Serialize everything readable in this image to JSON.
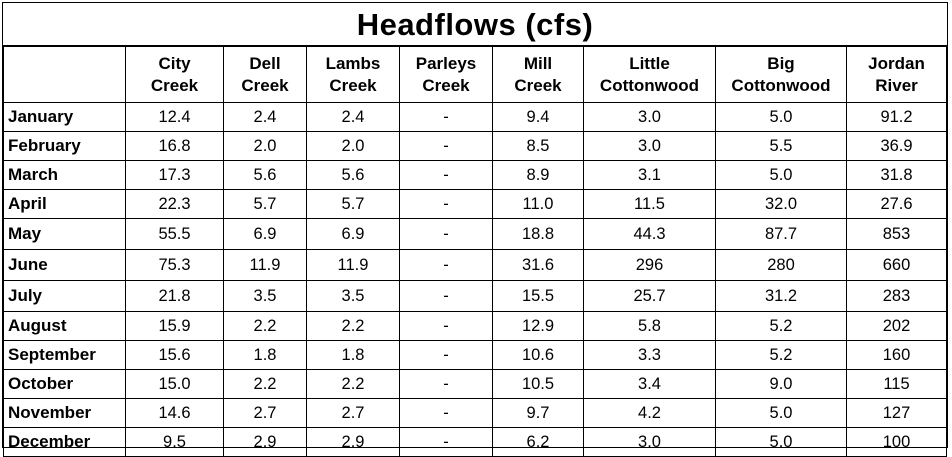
{
  "title": "Headflows (cfs)",
  "columns": [
    {
      "line1": "",
      "line2": ""
    },
    {
      "line1": "City",
      "line2": "Creek"
    },
    {
      "line1": "Dell",
      "line2": "Creek"
    },
    {
      "line1": "Lambs",
      "line2": "Creek"
    },
    {
      "line1": "Parleys",
      "line2": "Creek"
    },
    {
      "line1": "Mill",
      "line2": "Creek"
    },
    {
      "line1": "Little",
      "line2": "Cottonwood"
    },
    {
      "line1": "Big",
      "line2": "Cottonwood"
    },
    {
      "line1": "Jordan",
      "line2": "River"
    }
  ],
  "rows": [
    {
      "month": "January",
      "values": [
        "12.4",
        "2.4",
        "2.4",
        "-",
        "9.4",
        "3.0",
        "5.0",
        "91.2"
      ]
    },
    {
      "month": "February",
      "values": [
        "16.8",
        "2.0",
        "2.0",
        "-",
        "8.5",
        "3.0",
        "5.5",
        "36.9"
      ]
    },
    {
      "month": "March",
      "values": [
        "17.3",
        "5.6",
        "5.6",
        "-",
        "8.9",
        "3.1",
        "5.0",
        "31.8"
      ]
    },
    {
      "month": "April",
      "values": [
        "22.3",
        "5.7",
        "5.7",
        "-",
        "11.0",
        "11.5",
        "32.0",
        "27.6"
      ]
    },
    {
      "month": "May",
      "values": [
        "55.5",
        "6.9",
        "6.9",
        "-",
        "18.8",
        "44.3",
        "87.7",
        "853"
      ]
    },
    {
      "month": "June",
      "values": [
        "75.3",
        "11.9",
        "11.9",
        "-",
        "31.6",
        "296",
        "280",
        "660"
      ]
    },
    {
      "month": "July",
      "values": [
        "21.8",
        "3.5",
        "3.5",
        "-",
        "15.5",
        "25.7",
        "31.2",
        "283"
      ]
    },
    {
      "month": "August",
      "values": [
        "15.9",
        "2.2",
        "2.2",
        "-",
        "12.9",
        "5.8",
        "5.2",
        "202"
      ]
    },
    {
      "month": "September",
      "values": [
        "15.6",
        "1.8",
        "1.8",
        "-",
        "10.6",
        "3.3",
        "5.2",
        "160"
      ]
    },
    {
      "month": "October",
      "values": [
        "15.0",
        "2.2",
        "2.2",
        "-",
        "10.5",
        "3.4",
        "9.0",
        "115"
      ]
    },
    {
      "month": "November",
      "values": [
        "14.6",
        "2.7",
        "2.7",
        "-",
        "9.7",
        "4.2",
        "5.0",
        "127"
      ]
    },
    {
      "month": "December",
      "values": [
        "9.5",
        "2.9",
        "2.9",
        "-",
        "6.2",
        "3.0",
        "5.0",
        "100"
      ]
    }
  ]
}
